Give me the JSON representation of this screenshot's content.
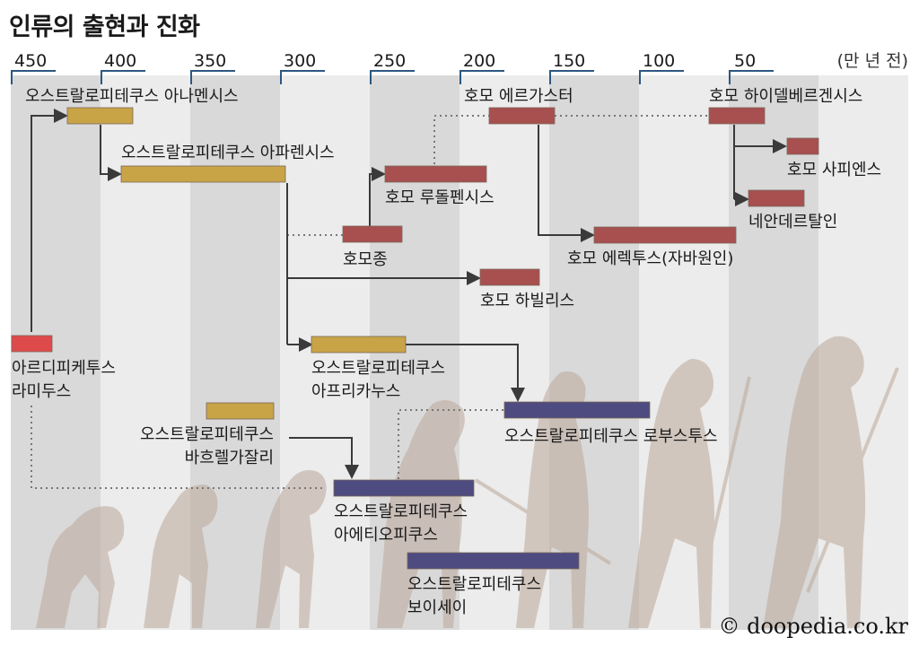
{
  "title": "인류의 출현과 진화",
  "credit": "© doopedia.co.kr",
  "axis": {
    "unit_label": "(만 년 전)",
    "ticks": [
      "450",
      "400",
      "350",
      "300",
      "250",
      "200",
      "150",
      "100",
      "50"
    ]
  },
  "colors": {
    "australopithecus": "#c8a447",
    "homo": "#a84f50",
    "robust": "#4e4b80",
    "ardipithecus": "#de4a4a",
    "band_dark": "#d9d9d9",
    "band_light": "#ececec",
    "axis": "#2c5782",
    "connector": "#3a3a3a"
  },
  "species": [
    {
      "name": "ardipithecus",
      "label": [
        "아르디피케투스",
        "라미두스"
      ]
    },
    {
      "name": "afarensis-precursor",
      "label": [
        "오스트랄로피테쿠스 아나멘시스"
      ]
    },
    {
      "name": "afarensis",
      "label": [
        "오스트랄로피테쿠스 아파렌시스"
      ]
    },
    {
      "name": "bahrelghazali",
      "label": [
        "오스트랄로피테쿠스",
        "바흐렐가잘리"
      ]
    },
    {
      "name": "africanus",
      "label": [
        "오스트랄로피테쿠스",
        "아프리카누스"
      ]
    },
    {
      "name": "aethiopicus",
      "label": [
        "오스트랄로피테쿠스",
        "아에티오피쿠스"
      ]
    },
    {
      "name": "robustus",
      "label": [
        "오스트랄로피테쿠스 로부스투스"
      ]
    },
    {
      "name": "boisei",
      "label": [
        "오스트랄로피테쿠스",
        "보이세이"
      ]
    },
    {
      "name": "homo-genus",
      "label": [
        "호모종"
      ]
    },
    {
      "name": "rudolfensis",
      "label": [
        "호모 루돌펜시스"
      ]
    },
    {
      "name": "habilis",
      "label": [
        "호모 하빌리스"
      ]
    },
    {
      "name": "ergaster",
      "label": [
        "호모 에르가스터"
      ]
    },
    {
      "name": "erectus",
      "label": [
        "호모 에렉투스(자바원인)"
      ]
    },
    {
      "name": "heidelbergensis",
      "label": [
        "호모 하이델베르겐시스"
      ]
    },
    {
      "name": "sapiens",
      "label": [
        "호모 사피엔스"
      ]
    },
    {
      "name": "neanderthal",
      "label": [
        "네안데르탈인"
      ]
    }
  ]
}
